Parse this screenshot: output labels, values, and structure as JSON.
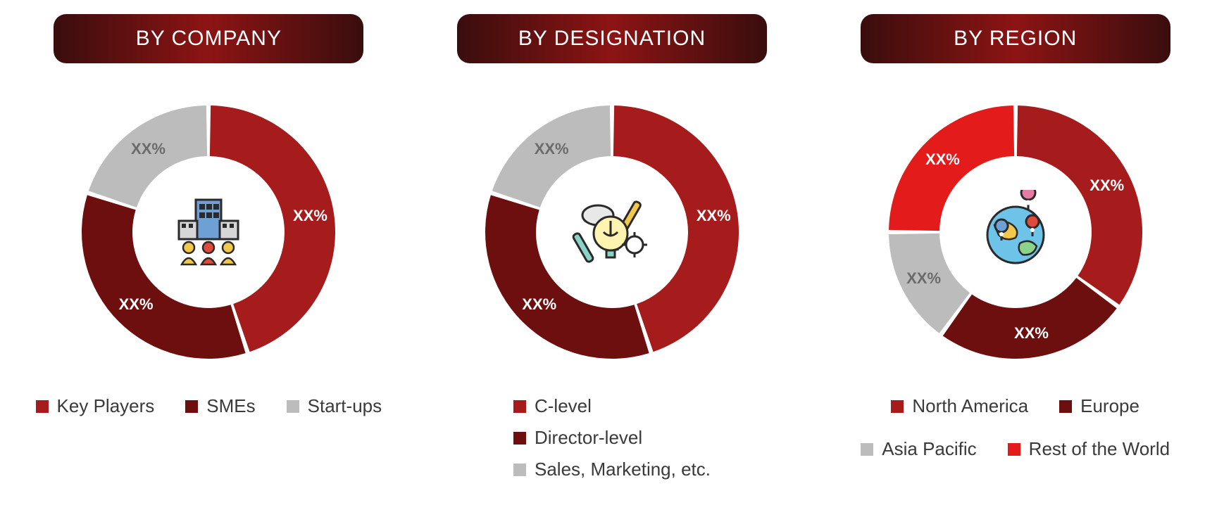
{
  "background_color": "#ffffff",
  "slice_gap_deg": 2,
  "donut": {
    "outer_r": 180,
    "inner_r": 108,
    "gap_color": "#ffffff",
    "label_r": 146
  },
  "title_style": {
    "gradient_stops": [
      "#3a0d0d",
      "#8d1414",
      "#3a0d0d"
    ],
    "text_color": "#ffffff",
    "fontsize": 30,
    "radius": 18
  },
  "legend_style": {
    "swatch_size": 18,
    "fontsize": 26,
    "text_color": "#3a3a3a"
  },
  "panels": [
    {
      "id": "company",
      "title": "BY COMPANY",
      "icon": "company-icon",
      "legend_layout": "row",
      "slices": [
        {
          "label": "Key Players",
          "value": 45,
          "color": "#a61b1b",
          "display": "XX%",
          "label_color": "#ffffff"
        },
        {
          "label": "SMEs",
          "value": 35,
          "color": "#6e0f0f",
          "display": "XX%",
          "label_color": "#ffffff"
        },
        {
          "label": "Start-ups",
          "value": 20,
          "color": "#bcbcbc",
          "display": "XX%",
          "label_color": "#6b6b6b"
        }
      ]
    },
    {
      "id": "designation",
      "title": "BY DESIGNATION",
      "icon": "idea-icon",
      "legend_layout": "col",
      "slices": [
        {
          "label": "C-level",
          "value": 45,
          "color": "#a61b1b",
          "display": "XX%",
          "label_color": "#ffffff"
        },
        {
          "label": "Director-level",
          "value": 35,
          "color": "#6e0f0f",
          "display": "XX%",
          "label_color": "#ffffff"
        },
        {
          "label": "Sales, Marketing, etc.",
          "value": 20,
          "color": "#bcbcbc",
          "display": "XX%",
          "label_color": "#6b6b6b"
        }
      ]
    },
    {
      "id": "region",
      "title": "BY REGION",
      "icon": "globe-icon",
      "legend_layout": "row",
      "slices": [
        {
          "label": "North America",
          "value": 35,
          "color": "#a61b1b",
          "display": "XX%",
          "label_color": "#ffffff"
        },
        {
          "label": "Europe",
          "value": 25,
          "color": "#6e0f0f",
          "display": "XX%",
          "label_color": "#ffffff"
        },
        {
          "label": "Asia Pacific",
          "value": 15,
          "color": "#bcbcbc",
          "display": "XX%",
          "label_color": "#6b6b6b"
        },
        {
          "label": "Rest of the World",
          "value": 25,
          "color": "#e31b1b",
          "display": "XX%",
          "label_color": "#ffffff"
        }
      ]
    }
  ]
}
